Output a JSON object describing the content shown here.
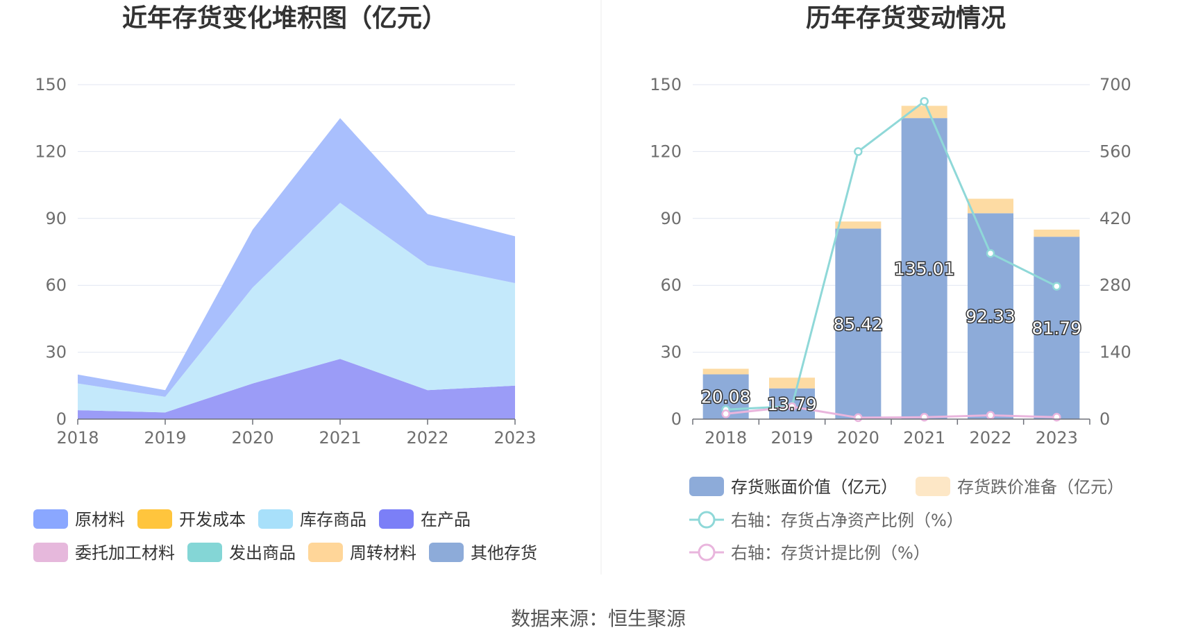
{
  "left": {
    "title": "近年存货变化堆积图（亿元）",
    "years": [
      "2018",
      "2019",
      "2020",
      "2021",
      "2022",
      "2023"
    ],
    "yticks": [
      "0",
      "30",
      "60",
      "90",
      "120",
      "150"
    ]
  },
  "right": {
    "title": "历年存货变动情况",
    "years": [
      "2018",
      "2019",
      "2020",
      "2021",
      "2022",
      "2023"
    ],
    "yticks_left": [
      "0",
      "30",
      "60",
      "90",
      "120",
      "150"
    ],
    "yticks_right": [
      "0",
      "140",
      "280",
      "420",
      "560",
      "700"
    ]
  },
  "legend_left": [
    {
      "label": "原材料",
      "color": "#8aa7ff"
    },
    {
      "label": "开发成本",
      "color": "#ffc53d"
    },
    {
      "label": "库存商品",
      "color": "#a8e0fa"
    },
    {
      "label": "在产品",
      "color": "#7b7ff7"
    },
    {
      "label": "委托加工材料",
      "color": "#e6b8dc"
    },
    {
      "label": "发出商品",
      "color": "#84d6d6"
    },
    {
      "label": "周转材料",
      "color": "#ffd699"
    },
    {
      "label": "其他存货",
      "color": "#8dabd9"
    }
  ],
  "legend_right": [
    {
      "label": "存货账面价值（亿元）",
      "color": "#8dabd9",
      "kind": "bar"
    },
    {
      "label": "存货跌价准备（亿元）",
      "color": "#fde7c6",
      "kind": "bar"
    },
    {
      "label": "右轴：存货占净资产比例（%）",
      "color": "#8fd8d8",
      "kind": "line"
    },
    {
      "label": "右轴：存货计提比例（%）",
      "color": "#e9b5dd",
      "kind": "line"
    }
  ],
  "source": "数据来源：恒生聚源",
  "chart_data": [
    {
      "type": "area",
      "title": "近年存货变化堆积图（亿元）",
      "x": [
        "2018",
        "2019",
        "2020",
        "2021",
        "2022",
        "2023"
      ],
      "ylim": [
        0,
        150
      ],
      "series": [
        {
          "name": "在产品",
          "color": "#9b9cf7",
          "values": [
            4,
            3,
            16,
            27,
            13,
            15
          ]
        },
        {
          "name": "库存商品",
          "color": "#c4e9fb",
          "values": [
            12,
            7,
            43,
            70,
            56,
            46
          ]
        },
        {
          "name": "原材料",
          "color": "#a9bffd",
          "values": [
            4,
            3,
            26,
            38,
            23,
            21
          ]
        }
      ]
    },
    {
      "type": "bar",
      "title": "历年存货变动情况",
      "categories": [
        "2018",
        "2019",
        "2020",
        "2021",
        "2022",
        "2023"
      ],
      "ylim": [
        0,
        150
      ],
      "y2lim": [
        0,
        700
      ],
      "series": [
        {
          "name": "存货账面价值（亿元）",
          "axis": "left",
          "color": "#8dabd9",
          "values": [
            20.08,
            13.79,
            85.42,
            135.01,
            92.33,
            81.79
          ],
          "labels": [
            "20.08",
            "13.79",
            "85.42",
            "135.01",
            "92.33",
            "81.79"
          ]
        },
        {
          "name": "存货跌价准备（亿元）",
          "axis": "left",
          "color": "#fddba3",
          "values": [
            2.5,
            4.8,
            3.2,
            5.5,
            6.5,
            3.2
          ]
        },
        {
          "name": "右轴：存货占净资产比例（%）",
          "axis": "right",
          "type": "line",
          "color": "#8fd8d8",
          "values": [
            20,
            27,
            560,
            665,
            347,
            278
          ]
        },
        {
          "name": "右轴：存货计提比例（%）",
          "axis": "right",
          "type": "line",
          "color": "#e9b5dd",
          "values": [
            11,
            26,
            3,
            4,
            8,
            4
          ]
        }
      ]
    }
  ]
}
